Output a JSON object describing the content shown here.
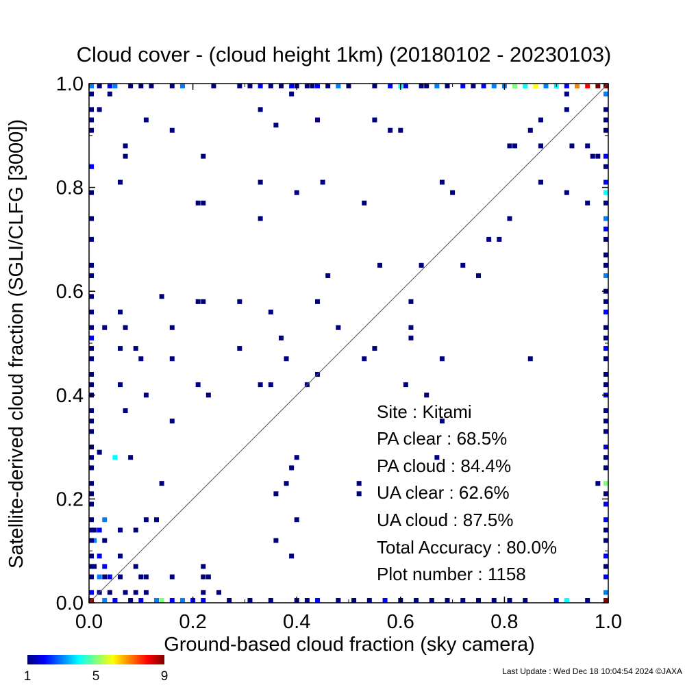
{
  "chart_data": {
    "type": "heatmap",
    "title": "Cloud cover - (cloud height 1km)  (20180102 - 20230103)",
    "xlabel": "Ground-based cloud fraction (sky camera)",
    "ylabel": "Satellite-derived cloud fraction (SGLI/CLFG [3000])",
    "xlim": [
      0.0,
      1.0
    ],
    "ylim": [
      0.0,
      1.0
    ],
    "x_ticks": [
      "0.0",
      "0.2",
      "0.4",
      "0.6",
      "0.8",
      "1.0"
    ],
    "y_ticks": [
      "0.0",
      "0.2",
      "0.4",
      "0.6",
      "0.8",
      "1.0"
    ],
    "reference_line": "y = x",
    "colorbar": {
      "min": 1,
      "max": 9,
      "tick_labels": [
        "1",
        "5",
        "9"
      ]
    },
    "stats": {
      "site": "Site : Kitami",
      "pa_clear": "PA clear :  68.5%",
      "pa_cloud": "PA cloud :  84.4%",
      "ua_clear": "UA clear :  62.6%",
      "ua_cloud": "UA cloud :  87.5%",
      "total_accuracy": "Total Accuracy :  80.0%",
      "plot_number": "Plot number :      1158"
    },
    "cells": [
      [
        0.33,
        0.95,
        1
      ],
      [
        0.36,
        0.92,
        1
      ],
      [
        0.39,
        0.98,
        1
      ],
      [
        0.44,
        0.93,
        1
      ],
      [
        0.55,
        0.93,
        1
      ],
      [
        0.58,
        0.91,
        1
      ],
      [
        0.6,
        0.91,
        1
      ],
      [
        0.16,
        0.91,
        1
      ],
      [
        0.11,
        0.93,
        1
      ],
      [
        0.02,
        0.95,
        1
      ],
      [
        0.04,
        0.98,
        1
      ],
      [
        0.07,
        0.88,
        1
      ],
      [
        0.07,
        0.86,
        1
      ],
      [
        0.22,
        0.86,
        1
      ],
      [
        0.06,
        0.81,
        1
      ],
      [
        0.33,
        0.81,
        1
      ],
      [
        0.45,
        0.81,
        1
      ],
      [
        0.4,
        0.79,
        1
      ],
      [
        0.21,
        0.77,
        1
      ],
      [
        0.22,
        0.77,
        1
      ],
      [
        0.53,
        0.77,
        1
      ],
      [
        0.33,
        0.74,
        1
      ],
      [
        0.68,
        0.81,
        1
      ],
      [
        0.7,
        0.79,
        1
      ],
      [
        0.81,
        0.88,
        1
      ],
      [
        0.82,
        0.88,
        1
      ],
      [
        0.85,
        0.91,
        1
      ],
      [
        0.87,
        0.93,
        1
      ],
      [
        0.92,
        0.98,
        1
      ],
      [
        0.92,
        0.95,
        1
      ],
      [
        0.87,
        0.88,
        1
      ],
      [
        0.93,
        0.88,
        1
      ],
      [
        0.96,
        0.88,
        1
      ],
      [
        0.87,
        0.81,
        1
      ],
      [
        0.92,
        0.79,
        1
      ],
      [
        0.81,
        0.74,
        1
      ],
      [
        0.77,
        0.7,
        1
      ],
      [
        0.79,
        0.7,
        1
      ],
      [
        0.72,
        0.65,
        1
      ],
      [
        0.75,
        0.63,
        1
      ],
      [
        0.64,
        0.65,
        1
      ],
      [
        0.56,
        0.65,
        1
      ],
      [
        0.46,
        0.63,
        1
      ],
      [
        0.14,
        0.59,
        1
      ],
      [
        0.21,
        0.58,
        1
      ],
      [
        0.22,
        0.58,
        1
      ],
      [
        0.29,
        0.58,
        1
      ],
      [
        0.44,
        0.58,
        1
      ],
      [
        0.62,
        0.58,
        1
      ],
      [
        0.06,
        0.56,
        1
      ],
      [
        0.35,
        0.56,
        1
      ],
      [
        0.03,
        0.53,
        1
      ],
      [
        0.07,
        0.53,
        1
      ],
      [
        0.16,
        0.53,
        1
      ],
      [
        0.37,
        0.51,
        1
      ],
      [
        0.48,
        0.53,
        1
      ],
      [
        0.62,
        0.53,
        1
      ],
      [
        0.62,
        0.51,
        1
      ],
      [
        0.55,
        0.49,
        1
      ],
      [
        0.06,
        0.49,
        1
      ],
      [
        0.09,
        0.49,
        1
      ],
      [
        0.1,
        0.47,
        1
      ],
      [
        0.16,
        0.47,
        1
      ],
      [
        0.29,
        0.49,
        1
      ],
      [
        0.38,
        0.47,
        1
      ],
      [
        0.53,
        0.47,
        1
      ],
      [
        0.68,
        0.47,
        1
      ],
      [
        0.85,
        0.47,
        1
      ],
      [
        0.44,
        0.44,
        1
      ],
      [
        0.42,
        0.42,
        1
      ],
      [
        0.06,
        0.42,
        1
      ],
      [
        0.21,
        0.42,
        1
      ],
      [
        0.33,
        0.42,
        1
      ],
      [
        0.35,
        0.42,
        1
      ],
      [
        0.61,
        0.42,
        1
      ],
      [
        0.11,
        0.4,
        1
      ],
      [
        0.23,
        0.4,
        1
      ],
      [
        0.65,
        0.4,
        1
      ],
      [
        0.07,
        0.37,
        1
      ],
      [
        0.16,
        0.35,
        1
      ],
      [
        0.68,
        0.35,
        1
      ],
      [
        0.02,
        0.29,
        1
      ],
      [
        0.05,
        0.28,
        4
      ],
      [
        0.08,
        0.28,
        1
      ],
      [
        0.4,
        0.28,
        1
      ],
      [
        0.39,
        0.26,
        1
      ],
      [
        0.67,
        0.28,
        1
      ],
      [
        0.52,
        0.23,
        1
      ],
      [
        0.52,
        0.21,
        1
      ],
      [
        0.14,
        0.23,
        1
      ],
      [
        0.36,
        0.21,
        1
      ],
      [
        0.38,
        0.23,
        1
      ],
      [
        0.03,
        0.16,
        3
      ],
      [
        0.11,
        0.16,
        1
      ],
      [
        0.13,
        0.16,
        1
      ],
      [
        0.4,
        0.16,
        1
      ],
      [
        0.09,
        0.14,
        1
      ],
      [
        0.06,
        0.14,
        1
      ],
      [
        0.36,
        0.12,
        1
      ],
      [
        0.39,
        0.09,
        1
      ],
      [
        0.01,
        0.14,
        1
      ],
      [
        0.02,
        0.14,
        2
      ],
      [
        0.03,
        0.12,
        1
      ],
      [
        0.02,
        0.09,
        2
      ],
      [
        0.01,
        0.12,
        3
      ],
      [
        0.06,
        0.09,
        1
      ],
      [
        0.03,
        0.07,
        2
      ],
      [
        0.01,
        0.07,
        1
      ],
      [
        0.02,
        0.05,
        3
      ],
      [
        0.03,
        0.05,
        1
      ],
      [
        0.04,
        0.05,
        2
      ],
      [
        0.06,
        0.05,
        1
      ],
      [
        0.09,
        0.07,
        1
      ],
      [
        0.1,
        0.05,
        1
      ],
      [
        0.11,
        0.05,
        1
      ],
      [
        0.16,
        0.05,
        1
      ],
      [
        0.22,
        0.07,
        1
      ],
      [
        0.22,
        0.05,
        1
      ],
      [
        0.23,
        0.05,
        1
      ],
      [
        0.02,
        0.02,
        1
      ],
      [
        0.04,
        0.02,
        1
      ],
      [
        0.07,
        0.02,
        1
      ],
      [
        0.09,
        0.02,
        1
      ],
      [
        0.11,
        0.02,
        1
      ],
      [
        0.22,
        0.02,
        1
      ],
      [
        0.25,
        0.02,
        1
      ],
      [
        0.0,
        0.0,
        9
      ],
      [
        1.0,
        1.0,
        9
      ],
      [
        0.0,
        1.0,
        3
      ],
      [
        1.0,
        0.0,
        9
      ],
      [
        0.02,
        1.0,
        1
      ],
      [
        0.04,
        1.0,
        2
      ],
      [
        0.05,
        1.0,
        3
      ],
      [
        0.08,
        1.0,
        1
      ],
      [
        0.1,
        1.0,
        1
      ],
      [
        0.12,
        1.0,
        1
      ],
      [
        0.16,
        1.0,
        1
      ],
      [
        0.18,
        1.0,
        3
      ],
      [
        0.24,
        1.0,
        1
      ],
      [
        0.29,
        1.0,
        1
      ],
      [
        0.31,
        1.0,
        1
      ],
      [
        0.33,
        1.0,
        2
      ],
      [
        0.35,
        1.0,
        1
      ],
      [
        0.37,
        1.0,
        1
      ],
      [
        0.39,
        1.0,
        2
      ],
      [
        0.4,
        1.0,
        1
      ],
      [
        0.42,
        1.0,
        1
      ],
      [
        0.43,
        1.0,
        1
      ],
      [
        0.44,
        1.0,
        2
      ],
      [
        0.46,
        1.0,
        1
      ],
      [
        0.48,
        1.0,
        3
      ],
      [
        0.5,
        1.0,
        1
      ],
      [
        0.55,
        1.0,
        1
      ],
      [
        0.58,
        1.0,
        2
      ],
      [
        0.6,
        1.0,
        4
      ],
      [
        0.61,
        1.0,
        2
      ],
      [
        0.64,
        1.0,
        1
      ],
      [
        0.65,
        1.0,
        1
      ],
      [
        0.67,
        1.0,
        3
      ],
      [
        0.69,
        1.0,
        1
      ],
      [
        0.72,
        1.0,
        2
      ],
      [
        0.74,
        1.0,
        1
      ],
      [
        0.76,
        1.0,
        2
      ],
      [
        0.78,
        1.0,
        3
      ],
      [
        0.8,
        1.0,
        3
      ],
      [
        0.82,
        1.0,
        5
      ],
      [
        0.84,
        1.0,
        4
      ],
      [
        0.86,
        1.0,
        6
      ],
      [
        0.88,
        1.0,
        3
      ],
      [
        0.9,
        1.0,
        4
      ],
      [
        0.92,
        1.0,
        2
      ],
      [
        0.94,
        1.0,
        7
      ],
      [
        0.96,
        1.0,
        8
      ],
      [
        0.98,
        1.0,
        9
      ],
      [
        0.03,
        0.0,
        3
      ],
      [
        0.05,
        0.0,
        2
      ],
      [
        0.08,
        0.0,
        1
      ],
      [
        0.1,
        0.0,
        2
      ],
      [
        0.13,
        0.0,
        3
      ],
      [
        0.14,
        0.0,
        5
      ],
      [
        0.16,
        0.0,
        2
      ],
      [
        0.18,
        0.0,
        3
      ],
      [
        0.2,
        0.0,
        2
      ],
      [
        0.22,
        0.0,
        2
      ],
      [
        0.27,
        0.0,
        1
      ],
      [
        0.31,
        0.0,
        1
      ],
      [
        0.35,
        0.0,
        1
      ],
      [
        0.4,
        0.0,
        1
      ],
      [
        0.42,
        0.0,
        1
      ],
      [
        0.44,
        0.0,
        2
      ],
      [
        0.48,
        0.0,
        1
      ],
      [
        0.51,
        0.0,
        1
      ],
      [
        0.54,
        0.0,
        1
      ],
      [
        0.57,
        0.0,
        2
      ],
      [
        0.6,
        0.0,
        1
      ],
      [
        0.63,
        0.0,
        1
      ],
      [
        0.66,
        0.0,
        1
      ],
      [
        0.69,
        0.0,
        1
      ],
      [
        0.72,
        0.0,
        1
      ],
      [
        0.75,
        0.0,
        1
      ],
      [
        0.78,
        0.0,
        1
      ],
      [
        0.81,
        0.0,
        1
      ],
      [
        0.84,
        0.0,
        1
      ],
      [
        0.9,
        0.0,
        2
      ],
      [
        0.92,
        0.0,
        4
      ],
      [
        0.96,
        0.0,
        1
      ],
      [
        0.0,
        0.98,
        1
      ],
      [
        0.0,
        0.95,
        1
      ],
      [
        0.0,
        0.93,
        1
      ],
      [
        0.0,
        0.91,
        1
      ],
      [
        0.0,
        0.84,
        2
      ],
      [
        0.0,
        0.79,
        1
      ],
      [
        0.0,
        0.74,
        1
      ],
      [
        0.0,
        0.7,
        1
      ],
      [
        0.0,
        0.65,
        1
      ],
      [
        0.0,
        0.63,
        1
      ],
      [
        0.0,
        0.59,
        1
      ],
      [
        0.0,
        0.56,
        1
      ],
      [
        0.0,
        0.53,
        1
      ],
      [
        0.0,
        0.51,
        2
      ],
      [
        0.0,
        0.49,
        1
      ],
      [
        0.0,
        0.47,
        1
      ],
      [
        0.0,
        0.44,
        1
      ],
      [
        0.0,
        0.42,
        1
      ],
      [
        0.0,
        0.4,
        1
      ],
      [
        0.0,
        0.37,
        1
      ],
      [
        0.0,
        0.35,
        1
      ],
      [
        0.0,
        0.33,
        1
      ],
      [
        0.0,
        0.3,
        1
      ],
      [
        0.0,
        0.28,
        1
      ],
      [
        0.0,
        0.26,
        1
      ],
      [
        0.0,
        0.23,
        1
      ],
      [
        0.0,
        0.21,
        1
      ],
      [
        0.0,
        0.19,
        1
      ],
      [
        0.0,
        0.16,
        1
      ],
      [
        0.0,
        0.14,
        1
      ],
      [
        0.0,
        0.12,
        1
      ],
      [
        0.0,
        0.09,
        1
      ],
      [
        0.0,
        0.07,
        1
      ],
      [
        0.0,
        0.05,
        1
      ],
      [
        0.0,
        0.02,
        2
      ],
      [
        1.0,
        0.98,
        3
      ],
      [
        1.0,
        0.95,
        1
      ],
      [
        1.0,
        0.93,
        1
      ],
      [
        1.0,
        0.91,
        1
      ],
      [
        1.0,
        0.86,
        2
      ],
      [
        1.0,
        0.84,
        1
      ],
      [
        1.0,
        0.81,
        2
      ],
      [
        1.0,
        0.79,
        4
      ],
      [
        1.0,
        0.77,
        1
      ],
      [
        1.0,
        0.74,
        3
      ],
      [
        1.0,
        0.72,
        2
      ],
      [
        1.0,
        0.7,
        1
      ],
      [
        1.0,
        0.67,
        1
      ],
      [
        1.0,
        0.65,
        1
      ],
      [
        1.0,
        0.63,
        3
      ],
      [
        1.0,
        0.6,
        1
      ],
      [
        1.0,
        0.58,
        1
      ],
      [
        1.0,
        0.56,
        2
      ],
      [
        1.0,
        0.53,
        1
      ],
      [
        1.0,
        0.51,
        1
      ],
      [
        1.0,
        0.49,
        2
      ],
      [
        1.0,
        0.47,
        1
      ],
      [
        1.0,
        0.44,
        1
      ],
      [
        1.0,
        0.42,
        1
      ],
      [
        1.0,
        0.4,
        2
      ],
      [
        1.0,
        0.37,
        1
      ],
      [
        1.0,
        0.35,
        1
      ],
      [
        1.0,
        0.33,
        1
      ],
      [
        1.0,
        0.3,
        2
      ],
      [
        1.0,
        0.28,
        1
      ],
      [
        1.0,
        0.26,
        1
      ],
      [
        1.0,
        0.23,
        5
      ],
      [
        1.0,
        0.21,
        1
      ],
      [
        1.0,
        0.19,
        2
      ],
      [
        1.0,
        0.16,
        2
      ],
      [
        1.0,
        0.14,
        1
      ],
      [
        1.0,
        0.12,
        1
      ],
      [
        1.0,
        0.09,
        2
      ],
      [
        1.0,
        0.07,
        1
      ],
      [
        1.0,
        0.05,
        2
      ],
      [
        1.0,
        0.02,
        3
      ],
      [
        0.96,
        0.77,
        1
      ],
      [
        0.97,
        0.86,
        1
      ],
      [
        0.98,
        0.86,
        1
      ],
      [
        0.98,
        0.23,
        1
      ]
    ]
  },
  "footer": {
    "last_update": "Last Update : Wed Dec 18 10:04:54 2024  ©JAXA"
  },
  "colors": {
    "colormap": [
      "#00007f",
      "#0000ff",
      "#007fff",
      "#00ffff",
      "#7fff7f",
      "#ffff00",
      "#ff7f00",
      "#ff0000",
      "#7f0000"
    ],
    "axis": "#000000",
    "reference_line": "#555555"
  }
}
